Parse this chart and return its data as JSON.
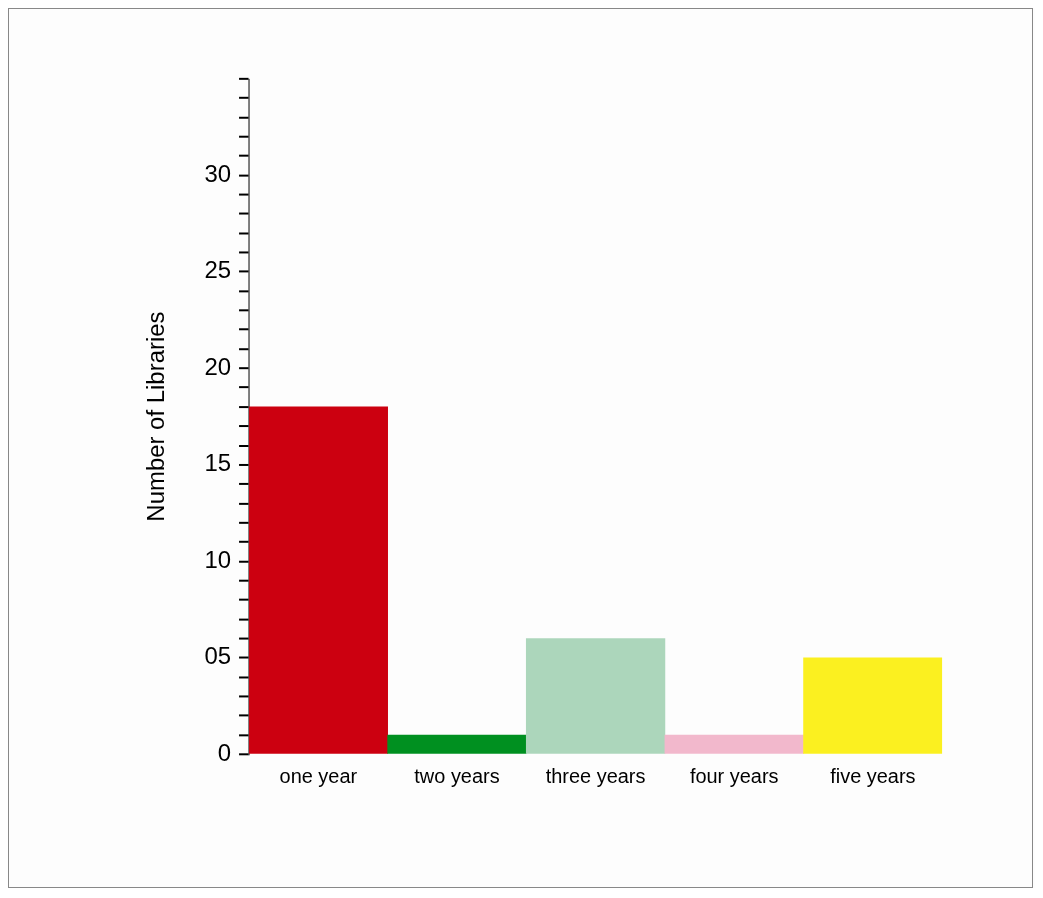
{
  "chart_data": {
    "type": "bar",
    "ylabel": "Number of Libraries",
    "categories": [
      "one year",
      "two years",
      "three years",
      "four years",
      "five years"
    ],
    "values": [
      18,
      1,
      6,
      1,
      5
    ],
    "colors": [
      "#cc0010",
      "#009020",
      "#acd6bb",
      "#f2b8cc",
      "#fbf020"
    ],
    "ylim": [
      0,
      35
    ],
    "yticks": [
      0,
      {
        "value": 1,
        "label": null
      },
      {
        "value": 2,
        "label": null
      },
      {
        "value": 3,
        "label": null
      },
      {
        "value": 4,
        "label": null
      },
      {
        "value": 5,
        "label": "05"
      },
      {
        "value": 6,
        "label": null
      },
      {
        "value": 7,
        "label": null
      },
      {
        "value": 8,
        "label": null
      },
      {
        "value": 9,
        "label": null
      },
      10,
      {
        "value": 11,
        "label": null
      },
      {
        "value": 12,
        "label": null
      },
      {
        "value": 13,
        "label": null
      },
      {
        "value": 14,
        "label": null
      },
      15,
      {
        "value": 16,
        "label": null
      },
      {
        "value": 17,
        "label": null
      },
      {
        "value": 18,
        "label": null
      },
      {
        "value": 19,
        "label": null
      },
      20,
      {
        "value": 21,
        "label": null
      },
      {
        "value": 22,
        "label": null
      },
      {
        "value": 23,
        "label": null
      },
      {
        "value": 24,
        "label": null
      },
      25,
      {
        "value": 26,
        "label": null
      },
      {
        "value": 27,
        "label": null
      },
      {
        "value": 28,
        "label": null
      },
      {
        "value": 29,
        "label": null
      },
      30,
      {
        "value": 31,
        "label": null
      },
      {
        "value": 32,
        "label": null
      },
      {
        "value": 33,
        "label": null
      },
      {
        "value": 34,
        "label": null
      },
      {
        "value": 35,
        "label": null
      }
    ],
    "grid": false,
    "legend": false
  }
}
